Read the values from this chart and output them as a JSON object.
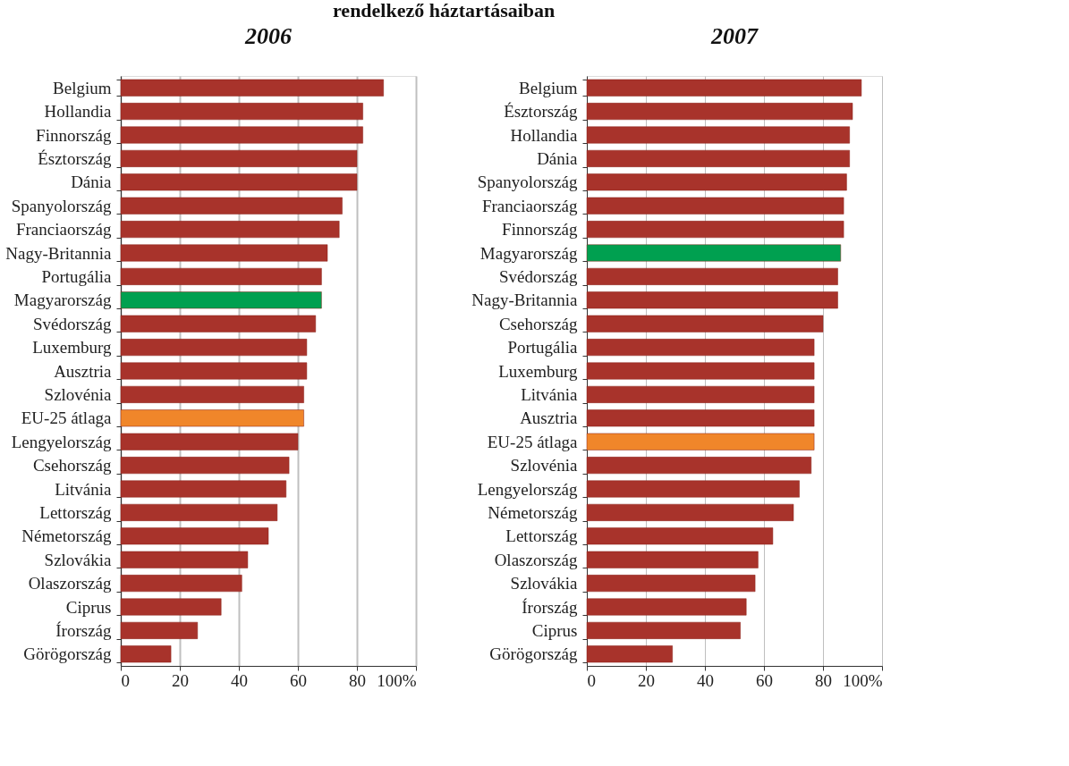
{
  "chart_data": [
    {
      "type": "bar",
      "orientation": "horizontal",
      "title": "2006",
      "annotations": [
        "rendelkező háztartásaiban"
      ],
      "categories": [
        "Belgium",
        "Hollandia",
        "Finnország",
        "Észtország",
        "Dánia",
        "Spanyolország",
        "Franciaország",
        "Nagy-Britannia",
        "Portugália",
        "Magyarország",
        "Svédország",
        "Luxemburg",
        "Ausztria",
        "Szlovénia",
        "EU-25 átlaga",
        "Lengyelország",
        "Csehország",
        "Litvánia",
        "Lettország",
        "Németország",
        "Szlovákia",
        "Olaszország",
        "Ciprus",
        "Írország",
        "Görögország"
      ],
      "values": [
        89,
        82,
        82,
        80,
        80,
        75,
        74,
        70,
        68,
        68,
        66,
        63,
        63,
        62,
        62,
        60,
        57,
        56,
        53,
        50,
        43,
        41,
        34,
        26,
        17
      ],
      "colors": [
        "#a8332b",
        "#a8332b",
        "#a8332b",
        "#a8332b",
        "#a8332b",
        "#a8332b",
        "#a8332b",
        "#a8332b",
        "#a8332b",
        "#00a050",
        "#a8332b",
        "#a8332b",
        "#a8332b",
        "#a8332b",
        "#f0862a",
        "#a8332b",
        "#a8332b",
        "#a8332b",
        "#a8332b",
        "#a8332b",
        "#a8332b",
        "#a8332b",
        "#a8332b",
        "#a8332b",
        "#a8332b"
      ],
      "xlim": [
        0,
        100
      ],
      "xticks": [
        0,
        20,
        40,
        60,
        80,
        {
          "value": 100,
          "label": "100%"
        }
      ],
      "grid": "x"
    },
    {
      "type": "bar",
      "orientation": "horizontal",
      "title": "2007",
      "categories": [
        "Belgium",
        "Észtország",
        "Hollandia",
        "Dánia",
        "Spanyolország",
        "Franciaország",
        "Finnország",
        "Magyarország",
        "Svédország",
        "Nagy-Britannia",
        "Csehország",
        "Portugália",
        "Luxemburg",
        "Litvánia",
        "Ausztria",
        "EU-25 átlaga",
        "Szlovénia",
        "Lengyelország",
        "Németország",
        "Lettország",
        "Olaszország",
        "Szlovákia",
        "Írország",
        "Ciprus",
        "Görögország"
      ],
      "values": [
        93,
        90,
        89,
        89,
        88,
        87,
        87,
        86,
        85,
        85,
        80,
        77,
        77,
        77,
        77,
        77,
        76,
        72,
        70,
        63,
        58,
        57,
        54,
        52,
        29
      ],
      "colors": [
        "#a8332b",
        "#a8332b",
        "#a8332b",
        "#a8332b",
        "#a8332b",
        "#a8332b",
        "#a8332b",
        "#00a050",
        "#a8332b",
        "#a8332b",
        "#a8332b",
        "#a8332b",
        "#a8332b",
        "#a8332b",
        "#a8332b",
        "#f0862a",
        "#a8332b",
        "#a8332b",
        "#a8332b",
        "#a8332b",
        "#a8332b",
        "#a8332b",
        "#a8332b",
        "#a8332b",
        "#a8332b"
      ],
      "xlim": [
        0,
        100
      ],
      "xticks": [
        0,
        20,
        40,
        60,
        80,
        {
          "value": 100,
          "label": "100%"
        }
      ],
      "grid": "x"
    }
  ]
}
